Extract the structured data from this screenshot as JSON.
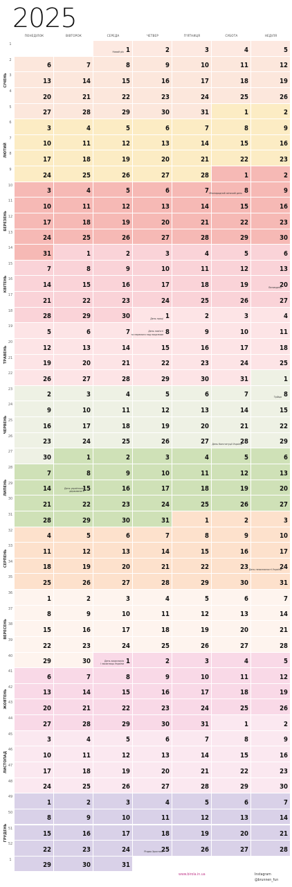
{
  "title": "2025",
  "weekdays": [
    "понеділок",
    "вівторок",
    "середа",
    "четвер",
    "п'ятниця",
    "субота",
    "неділя"
  ],
  "months": [
    {
      "name": "Січень",
      "color": "#fce7dc",
      "rows": [
        1,
        5
      ]
    },
    {
      "name": "Лютий",
      "color": "#fcecc4",
      "rows": [
        6,
        9
      ]
    },
    {
      "name": "Березень",
      "color": "#f6b9b5",
      "rows": [
        10,
        14
      ]
    },
    {
      "name": "Квітень",
      "color": "#fad3d8",
      "rows": [
        14,
        18
      ]
    },
    {
      "name": "Травень",
      "color": "#fde4e6",
      "rows": [
        19,
        22
      ]
    },
    {
      "name": "Червень",
      "color": "#eef1e4",
      "rows": [
        23,
        27
      ]
    },
    {
      "name": "Липень",
      "color": "#cfe1b7",
      "rows": [
        27,
        31
      ]
    },
    {
      "name": "Серпень",
      "color": "#fde1cc",
      "rows": [
        32,
        35
      ]
    },
    {
      "name": "Вересень",
      "color": "#fef4ee",
      "rows": [
        36,
        40
      ]
    },
    {
      "name": "Жовтень",
      "color": "#f9d9e7",
      "rows": [
        41,
        44
      ]
    },
    {
      "name": "Листопад",
      "color": "#fbe8f0",
      "rows": [
        45,
        48
      ]
    },
    {
      "name": "Грудень",
      "color": "#d9d1e8",
      "rows": [
        49,
        53
      ]
    }
  ],
  "week_numbers": [
    "1",
    "2",
    "3",
    "4",
    "5",
    "6",
    "7",
    "8",
    "9",
    "10",
    "11",
    "12",
    "13",
    "14",
    "15",
    "16",
    "17",
    "18",
    "19",
    "20",
    "21",
    "22",
    "23",
    "24",
    "25",
    "26",
    "27",
    "28",
    "29",
    "30",
    "31",
    "32",
    "33",
    "34",
    "35",
    "36",
    "37",
    "38",
    "39",
    "40",
    "41",
    "42",
    "43",
    "44",
    "45",
    "46",
    "47",
    "48",
    "49",
    "50",
    "51",
    "52",
    "1"
  ],
  "weeks": [
    [
      null,
      null,
      [
        0,
        "",
        "#ffffff"
      ],
      [
        0,
        "",
        "#ffffff"
      ],
      [
        0,
        "",
        "#ffffff"
      ],
      [
        0,
        "",
        "#ffffff"
      ],
      [
        0,
        "",
        "#ffffff"
      ]
    ]
  ],
  "holidays": [
    {
      "month": 0,
      "day": 1,
      "text": "Новий рік"
    },
    {
      "month": 2,
      "day": 8,
      "text": "Міжнародний жіночий день"
    },
    {
      "month": 3,
      "day": 20,
      "text": "Великдень"
    },
    {
      "month": 4,
      "day": 1,
      "text": "День праці"
    },
    {
      "month": 4,
      "day": 8,
      "text": "День пам'яті\nта перемоги над нацизмом"
    },
    {
      "month": 5,
      "day": 8,
      "text": "Трійця"
    },
    {
      "month": 5,
      "day": 28,
      "text": "День Конституції України"
    },
    {
      "month": 6,
      "day": 15,
      "text": "День української\nдержавності"
    },
    {
      "month": 7,
      "day": 24,
      "text": "День незалежності України"
    },
    {
      "month": 9,
      "day": 1,
      "text": "День захисників\nі захисниць України"
    },
    {
      "month": 11,
      "day": 25,
      "text": "Різдво Христове"
    }
  ],
  "footer": {
    "website": "www.birola.in.ua",
    "instagram": "Instagram @brunnen_fun"
  }
}
